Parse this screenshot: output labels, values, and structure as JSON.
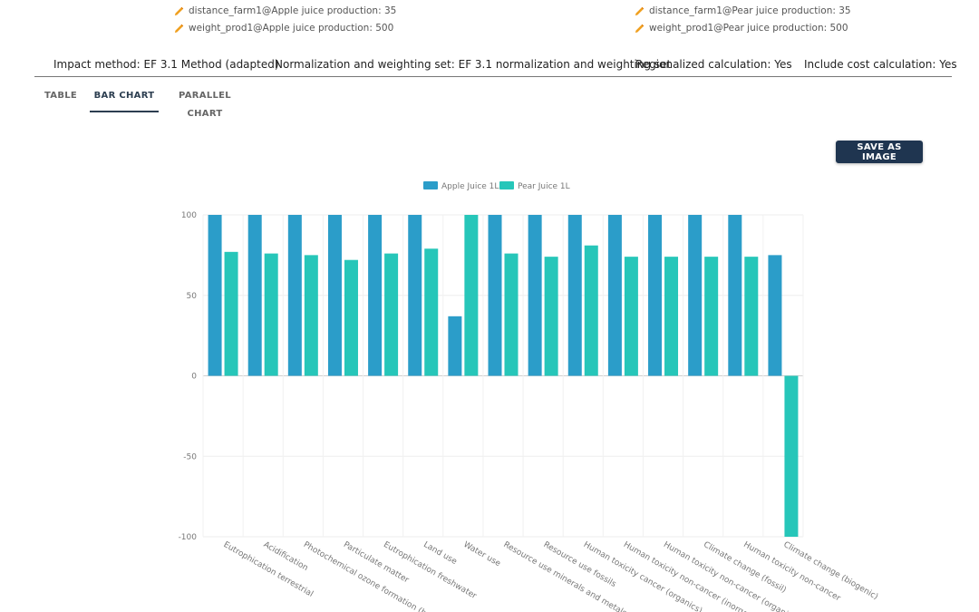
{
  "parameters": [
    {
      "label": "distance_farm1@Apple juice production: 35"
    },
    {
      "label": "weight_prod1@Apple juice production: 500"
    },
    {
      "label": "distance_farm1@Pear juice production: 35"
    },
    {
      "label": "weight_prod1@Pear juice production: 500"
    }
  ],
  "info": {
    "impact_method": "Impact method: EF 3.1 Method (adapted)",
    "normalization": "Normalization and weighting set: EF 3.1 normalization and weighting set",
    "regionalized": "Regionalized calculation: Yes",
    "cost": "Include cost calculation: Yes"
  },
  "tabs": [
    {
      "label": "TABLE"
    },
    {
      "label": "BAR CHART"
    },
    {
      "label": "PARALLEL CHART"
    }
  ],
  "active_tab": "BAR CHART",
  "save_button": "SAVE AS IMAGE",
  "colors": {
    "apple": "#2b9dc9",
    "pear": "#26c6b9",
    "pencil": "#f0a020"
  },
  "chart_data": {
    "type": "bar",
    "categories": [
      "Eutrophication terrestrial",
      "Acidification",
      "Photochemical ozone formation (hum",
      "Particulate matter",
      "Eutrophication freshwater",
      "Land use",
      "Water use",
      "Resource use minerals and metals",
      "Resource use fossils",
      "Human toxicity cancer (organics)",
      "Human toxicity non-cancer (inorganic",
      "Human toxicity non-cancer (organics)",
      "Climate change (fossil)",
      "Human toxicity non-cancer",
      "Climate change (biogenic)"
    ],
    "series": [
      {
        "name": "Apple Juice 1L",
        "values": [
          100,
          100,
          100,
          100,
          100,
          100,
          37,
          100,
          100,
          100,
          100,
          100,
          100,
          100,
          75
        ]
      },
      {
        "name": "Pear Juice 1L",
        "values": [
          77,
          76,
          75,
          72,
          76,
          79,
          100,
          76,
          74,
          81,
          74,
          74,
          74,
          74,
          -100
        ]
      }
    ],
    "yticks": [
      "100",
      "50",
      "0",
      "-50",
      "-100"
    ],
    "ylim": [
      -100,
      100
    ],
    "grid": true,
    "legend_position": "top"
  }
}
